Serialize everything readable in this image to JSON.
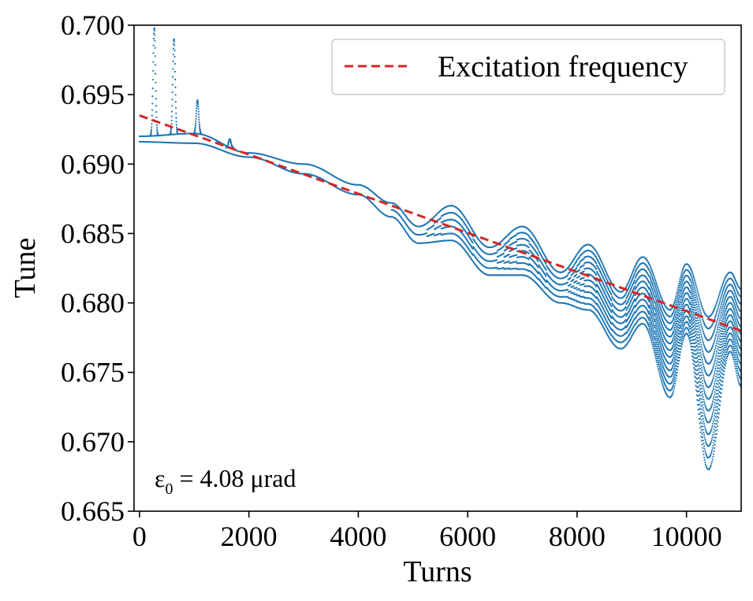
{
  "chart_data": {
    "type": "scatter",
    "xlabel": "Turns",
    "ylabel": "Tune",
    "xlim": [
      -100,
      11000
    ],
    "ylim": [
      0.665,
      0.7
    ],
    "x_ticks": [
      0,
      2000,
      4000,
      6000,
      8000,
      10000
    ],
    "x_tick_labels": [
      "0",
      "2000",
      "4000",
      "6000",
      "8000",
      "10000"
    ],
    "y_ticks": [
      0.665,
      0.67,
      0.675,
      0.68,
      0.685,
      0.69,
      0.695,
      0.7
    ],
    "y_tick_labels": [
      "0.665",
      "0.670",
      "0.675",
      "0.680",
      "0.685",
      "0.690",
      "0.695",
      "0.700"
    ],
    "grid": false,
    "legend": {
      "placement": "top-right",
      "entries": [
        {
          "label": "Excitation frequency",
          "style": "dashed-line",
          "color": "#d62728"
        }
      ]
    },
    "annotation": {
      "symbol": "ε",
      "subscript": "0",
      "text": " = 4.08 μrad",
      "placement": "bottom-left"
    },
    "series": [
      {
        "name": "Excitation frequency",
        "kind": "line",
        "style": "dashed",
        "color": "#d62728",
        "x": [
          0,
          11000
        ],
        "y": [
          0.6935,
          0.678
        ]
      },
      {
        "kind": "scatter",
        "color": "#1f77b4",
        "envelope_x": [
          0,
          1000,
          2000,
          3000,
          4000,
          4600,
          5100,
          5700,
          6400,
          7000,
          7700,
          8200,
          8800,
          9200,
          9700,
          10000,
          10400,
          10800,
          11000
        ],
        "envelope_upper": [
          0.692,
          0.6922,
          0.6908,
          0.69,
          0.6885,
          0.6872,
          0.6855,
          0.687,
          0.684,
          0.6855,
          0.6822,
          0.6842,
          0.6808,
          0.6833,
          0.6795,
          0.6828,
          0.679,
          0.6822,
          0.681
        ],
        "envelope_lower": [
          0.6916,
          0.6915,
          0.6905,
          0.6893,
          0.6878,
          0.6862,
          0.6843,
          0.6845,
          0.682,
          0.682,
          0.68,
          0.6795,
          0.6767,
          0.6785,
          0.6732,
          0.6778,
          0.668,
          0.6765,
          0.674
        ],
        "spikes": [
          {
            "x": 270,
            "y": 0.6998
          },
          {
            "x": 630,
            "y": 0.699
          },
          {
            "x": 1060,
            "y": 0.6946
          },
          {
            "x": 1650,
            "y": 0.6918
          }
        ]
      }
    ]
  }
}
